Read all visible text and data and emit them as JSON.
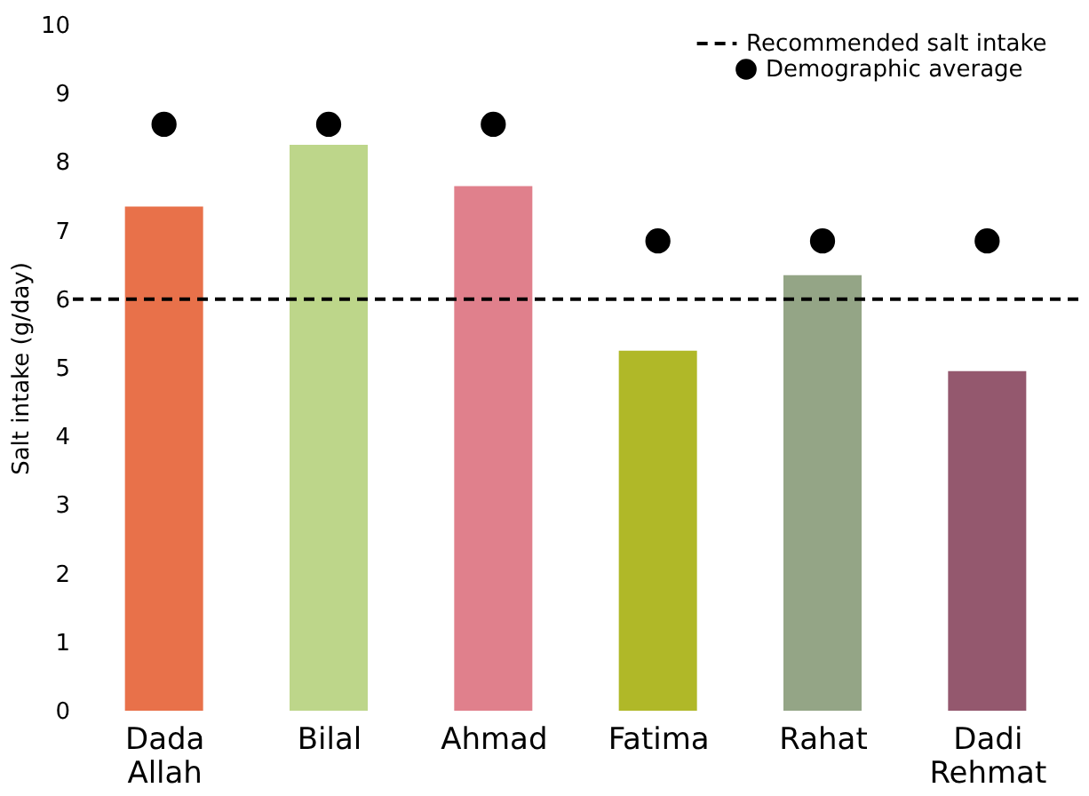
{
  "chart_data": {
    "type": "bar",
    "ylabel": "Salt intake (g/day)",
    "categories": [
      "Dada Allah",
      "Bilal",
      "Ahmad",
      "Fatima",
      "Rahat",
      "Dadi Rehmat"
    ],
    "series": [
      {
        "type": "bar",
        "colors": [
          "#e8714a",
          "#bdd68a",
          "#e0808c",
          "#b0b828",
          "#94a586",
          "#94586e"
        ],
        "values": [
          7.35,
          8.25,
          7.65,
          5.25,
          6.35,
          4.95
        ]
      },
      {
        "type": "scatter",
        "name": "Demographic average",
        "color": "#000000",
        "values": [
          8.55,
          8.55,
          8.55,
          6.85,
          6.85,
          6.85
        ]
      }
    ],
    "ref_lines": [
      {
        "axis": "y",
        "value": 6,
        "label": "Recommended salt intake",
        "color": "#000000",
        "line_style": "dashed"
      }
    ],
    "ylim": [
      0,
      10
    ],
    "yticks": [
      0,
      1,
      2,
      3,
      4,
      5,
      6,
      7,
      8,
      9,
      10
    ],
    "grid": false,
    "legend": "top right",
    "marker": "circle"
  }
}
